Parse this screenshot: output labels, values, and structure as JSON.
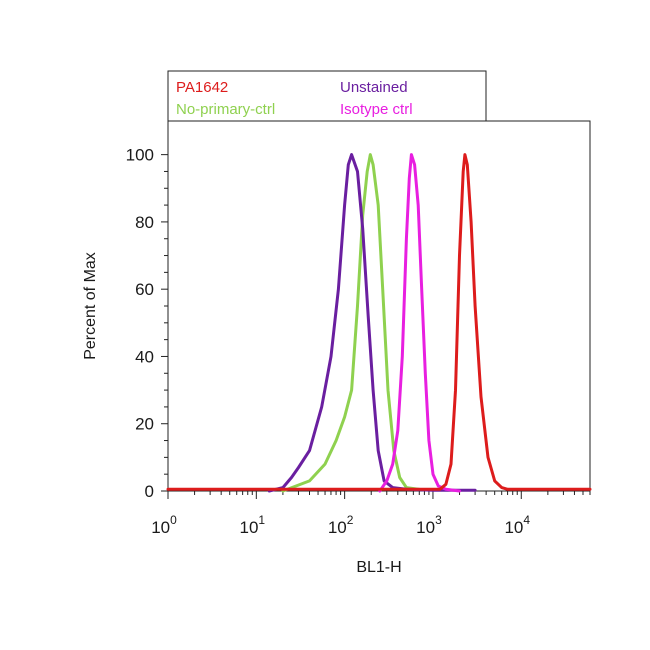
{
  "chart_data": {
    "type": "line",
    "xlabel": "BL1-H",
    "ylabel": "Percent of Max",
    "x_scale": "log",
    "xlim": [
      1,
      60000
    ],
    "ylim": [
      0,
      110
    ],
    "x_ticks": [
      {
        "value": 1,
        "base": "10",
        "exp": "0"
      },
      {
        "value": 10,
        "base": "10",
        "exp": "1"
      },
      {
        "value": 100,
        "base": "10",
        "exp": "2"
      },
      {
        "value": 1000,
        "base": "10",
        "exp": "3"
      },
      {
        "value": 10000,
        "base": "10",
        "exp": "4"
      }
    ],
    "y_ticks": [
      "0",
      "20",
      "40",
      "60",
      "80",
      "100"
    ],
    "grid": false,
    "legend_position": "top",
    "series": [
      {
        "name": "PA1642",
        "color": "#dd1c1c",
        "points": [
          [
            1,
            0.5
          ],
          [
            1200,
            0.5
          ],
          [
            1400,
            2
          ],
          [
            1600,
            8
          ],
          [
            1800,
            30
          ],
          [
            2000,
            70
          ],
          [
            2200,
            95
          ],
          [
            2300,
            100
          ],
          [
            2450,
            97
          ],
          [
            2700,
            80
          ],
          [
            3000,
            55
          ],
          [
            3500,
            28
          ],
          [
            4200,
            10
          ],
          [
            5000,
            3
          ],
          [
            6000,
            1
          ],
          [
            7000,
            0.5
          ],
          [
            60000,
            0.5
          ]
        ]
      },
      {
        "name": "Unstained",
        "color": "#6a1fa0",
        "points": [
          [
            14,
            0
          ],
          [
            20,
            1
          ],
          [
            25,
            4
          ],
          [
            30,
            7
          ],
          [
            40,
            12
          ],
          [
            55,
            25
          ],
          [
            70,
            40
          ],
          [
            85,
            60
          ],
          [
            100,
            85
          ],
          [
            110,
            97
          ],
          [
            120,
            100
          ],
          [
            140,
            95
          ],
          [
            160,
            78
          ],
          [
            185,
            52
          ],
          [
            210,
            30
          ],
          [
            240,
            12
          ],
          [
            280,
            3
          ],
          [
            350,
            1
          ],
          [
            500,
            0.5
          ],
          [
            1000,
            0.2
          ],
          [
            3000,
            0.2
          ]
        ]
      },
      {
        "name": "No-primary-ctrl",
        "color": "#8fd14f",
        "points": [
          [
            20,
            0
          ],
          [
            40,
            3
          ],
          [
            60,
            8
          ],
          [
            80,
            15
          ],
          [
            100,
            22
          ],
          [
            120,
            30
          ],
          [
            140,
            55
          ],
          [
            160,
            82
          ],
          [
            180,
            95
          ],
          [
            195,
            100
          ],
          [
            210,
            97
          ],
          [
            240,
            85
          ],
          [
            270,
            60
          ],
          [
            310,
            30
          ],
          [
            360,
            12
          ],
          [
            420,
            4
          ],
          [
            500,
            1
          ],
          [
            700,
            0.5
          ]
        ]
      },
      {
        "name": "Isotype ctrl",
        "color": "#e81fe0",
        "points": [
          [
            250,
            0
          ],
          [
            300,
            3
          ],
          [
            350,
            8
          ],
          [
            400,
            18
          ],
          [
            450,
            40
          ],
          [
            500,
            75
          ],
          [
            540,
            93
          ],
          [
            570,
            100
          ],
          [
            620,
            97
          ],
          [
            680,
            85
          ],
          [
            740,
            62
          ],
          [
            820,
            35
          ],
          [
            900,
            15
          ],
          [
            1000,
            5
          ],
          [
            1150,
            1.5
          ],
          [
            1400,
            0.5
          ],
          [
            2000,
            0
          ]
        ]
      }
    ]
  }
}
